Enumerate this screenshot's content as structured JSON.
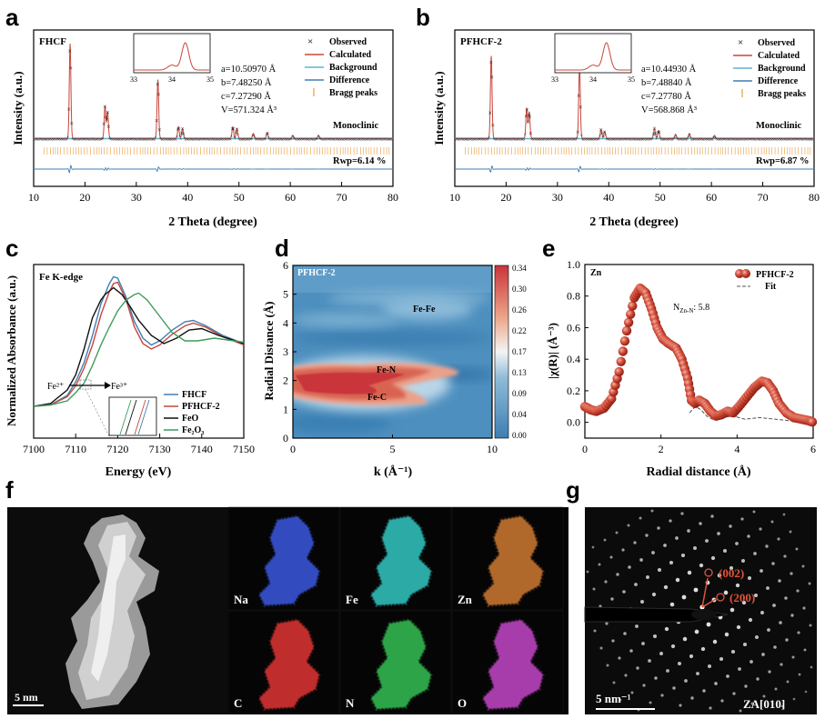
{
  "panel_letters": {
    "a": "a",
    "b": "b",
    "c": "c",
    "d": "d",
    "e": "e",
    "f": "f",
    "g": "g"
  },
  "chart_data": [
    {
      "panel": "a",
      "type": "line",
      "tag": "FHCF",
      "xlabel": "2 Theta (degree)",
      "ylabel": "Intensity (a.u.)",
      "xlim": [
        10,
        80
      ],
      "xticks": [
        "10",
        "20",
        "30",
        "40",
        "50",
        "60",
        "70",
        "80"
      ],
      "legend": [
        "Observed",
        "Calculated",
        "Background",
        "Difference",
        "Bragg peaks"
      ],
      "lattice": [
        "a=10.50970 Å",
        "b=7.48250 Å",
        "c=7.27290 Å",
        "V=571.324 Å³"
      ],
      "phase": "Monoclinic",
      "rwp": "Rwp=6.14 %",
      "inset_xticks": [
        "33",
        "34",
        "35"
      ],
      "peaks": [
        [
          17.1,
          1.0
        ],
        [
          23.9,
          0.34
        ],
        [
          24.4,
          0.28
        ],
        [
          34.2,
          0.62
        ],
        [
          38.2,
          0.12
        ],
        [
          39.0,
          0.1
        ],
        [
          48.8,
          0.12
        ],
        [
          49.6,
          0.1
        ],
        [
          52.8,
          0.05
        ],
        [
          55.5,
          0.06
        ],
        [
          60.5,
          0.03
        ],
        [
          65.5,
          0.03
        ]
      ]
    },
    {
      "panel": "b",
      "type": "line",
      "tag": "PFHCF-2",
      "xlabel": "2 Theta (degree)",
      "ylabel": "Intensity (a.u.)",
      "xlim": [
        10,
        80
      ],
      "xticks": [
        "10",
        "20",
        "30",
        "40",
        "50",
        "60",
        "70",
        "80"
      ],
      "legend": [
        "Observed",
        "Calculated",
        "Background",
        "Difference",
        "Bragg peaks"
      ],
      "lattice": [
        "a=10.44930 Å",
        "b=7.48840 Å",
        "c=7.27780 Å",
        "V=568.868 Å³"
      ],
      "phase": "Monoclinic",
      "rwp": "Rwp=6.87 %",
      "inset_xticks": [
        "33",
        "34",
        "35"
      ],
      "peaks": [
        [
          17.1,
          0.87
        ],
        [
          24.0,
          0.32
        ],
        [
          24.5,
          0.28
        ],
        [
          34.3,
          0.77
        ],
        [
          38.5,
          0.09
        ],
        [
          39.2,
          0.07
        ],
        [
          48.9,
          0.1
        ],
        [
          49.7,
          0.08
        ],
        [
          53.0,
          0.04
        ],
        [
          55.7,
          0.05
        ],
        [
          60.6,
          0.03
        ]
      ]
    },
    {
      "panel": "c",
      "type": "line",
      "tag": "Fe K-edge",
      "xlabel": "Energy (eV)",
      "ylabel": "Normalized Absorbance (a.u.)",
      "xlim": [
        7100,
        7150
      ],
      "xticks": [
        "7100",
        "7110",
        "7120",
        "7130",
        "7140",
        "7150"
      ],
      "annotation": {
        "left": "Fe²⁺",
        "right": "Fe³⁺"
      },
      "series": [
        {
          "name": "FHCF",
          "color": "#3f7fb4",
          "points": [
            [
              7100,
              0.1
            ],
            [
              7104,
              0.11
            ],
            [
              7108,
              0.18
            ],
            [
              7110,
              0.28
            ],
            [
              7112,
              0.42
            ],
            [
              7114,
              0.62
            ],
            [
              7116,
              0.85
            ],
            [
              7118,
              1.0
            ],
            [
              7119,
              1.05
            ],
            [
              7120,
              1.04
            ],
            [
              7122,
              0.9
            ],
            [
              7124,
              0.72
            ],
            [
              7126,
              0.6
            ],
            [
              7128,
              0.55
            ],
            [
              7130,
              0.58
            ],
            [
              7133,
              0.66
            ],
            [
              7136,
              0.72
            ],
            [
              7138,
              0.73
            ],
            [
              7141,
              0.69
            ],
            [
              7145,
              0.62
            ],
            [
              7150,
              0.56
            ]
          ]
        },
        {
          "name": "PFHCF-2",
          "color": "#c8463a",
          "points": [
            [
              7100,
              0.1
            ],
            [
              7104,
              0.11
            ],
            [
              7108,
              0.17
            ],
            [
              7110,
              0.25
            ],
            [
              7112,
              0.38
            ],
            [
              7114,
              0.55
            ],
            [
              7116,
              0.77
            ],
            [
              7118,
              0.94
            ],
            [
              7119,
              1.0
            ],
            [
              7120,
              1.01
            ],
            [
              7122,
              0.88
            ],
            [
              7124,
              0.68
            ],
            [
              7126,
              0.56
            ],
            [
              7128,
              0.52
            ],
            [
              7130,
              0.55
            ],
            [
              7133,
              0.63
            ],
            [
              7136,
              0.69
            ],
            [
              7138,
              0.71
            ],
            [
              7141,
              0.68
            ],
            [
              7145,
              0.61
            ],
            [
              7150,
              0.55
            ]
          ]
        },
        {
          "name": "FeO",
          "color": "#111111",
          "points": [
            [
              7100,
              0.1
            ],
            [
              7104,
              0.12
            ],
            [
              7108,
              0.22
            ],
            [
              7110,
              0.33
            ],
            [
              7112,
              0.52
            ],
            [
              7114,
              0.75
            ],
            [
              7116,
              0.88
            ],
            [
              7117,
              0.92
            ],
            [
              7119,
              0.97
            ],
            [
              7121,
              0.92
            ],
            [
              7123,
              0.83
            ],
            [
              7125,
              0.73
            ],
            [
              7128,
              0.62
            ],
            [
              7131,
              0.56
            ],
            [
              7134,
              0.6
            ],
            [
              7137,
              0.66
            ],
            [
              7140,
              0.67
            ],
            [
              7144,
              0.62
            ],
            [
              7150,
              0.56
            ]
          ]
        },
        {
          "name": "Fe₂O₃",
          "color": "#3e9b5a",
          "points": [
            [
              7100,
              0.1
            ],
            [
              7104,
              0.11
            ],
            [
              7108,
              0.14
            ],
            [
              7110,
              0.2
            ],
            [
              7112,
              0.27
            ],
            [
              7114,
              0.4
            ],
            [
              7116,
              0.55
            ],
            [
              7118,
              0.68
            ],
            [
              7120,
              0.8
            ],
            [
              7122,
              0.88
            ],
            [
              7124,
              0.92
            ],
            [
              7125,
              0.93
            ],
            [
              7127,
              0.88
            ],
            [
              7130,
              0.76
            ],
            [
              7133,
              0.64
            ],
            [
              7136,
              0.58
            ],
            [
              7139,
              0.58
            ],
            [
              7143,
              0.6
            ],
            [
              7150,
              0.57
            ]
          ]
        }
      ]
    },
    {
      "panel": "d",
      "type": "heatmap",
      "tag": "PFHCF-2",
      "xlabel": "k (Å⁻¹)",
      "ylabel": "Radial Distance (Å)",
      "xlim": [
        0,
        10
      ],
      "ylim": [
        0,
        6
      ],
      "xticks": [
        "0",
        "5",
        "10"
      ],
      "yticks": [
        "0",
        "1",
        "2",
        "3",
        "4",
        "5",
        "6"
      ],
      "colorbar_ticks": [
        "0.00",
        "0.04",
        "0.09",
        "0.13",
        "0.17",
        "0.22",
        "0.26",
        "0.30",
        "0.34"
      ],
      "labels": [
        "Fe-Fe",
        "Fe-N",
        "Fe-C"
      ]
    },
    {
      "panel": "e",
      "type": "scatter",
      "tag": "Zn",
      "xlabel": "Radial distance (Å)",
      "ylabel": "|χ(R)| (Å⁻³)",
      "xlim": [
        0,
        6
      ],
      "ylim": [
        -0.1,
        1.0
      ],
      "xticks": [
        "0",
        "2",
        "4",
        "6"
      ],
      "yticks": [
        "0.0",
        "0.2",
        "0.4",
        "0.6",
        "0.8",
        "1.0"
      ],
      "coord": "N",
      "coord_sub": "Zn-N",
      "coord_value": ": 5.8",
      "legend": [
        "PFHCF-2",
        "Fit"
      ],
      "series": [
        {
          "name": "PFHCF-2",
          "color": "#c8463a",
          "points": [
            [
              0,
              0.1
            ],
            [
              0.15,
              0.08
            ],
            [
              0.3,
              0.07
            ],
            [
              0.5,
              0.09
            ],
            [
              0.7,
              0.15
            ],
            [
              0.9,
              0.32
            ],
            [
              1.1,
              0.58
            ],
            [
              1.3,
              0.79
            ],
            [
              1.45,
              0.85
            ],
            [
              1.6,
              0.82
            ],
            [
              1.75,
              0.72
            ],
            [
              1.9,
              0.6
            ],
            [
              2.05,
              0.53
            ],
            [
              2.2,
              0.5
            ],
            [
              2.4,
              0.47
            ],
            [
              2.55,
              0.4
            ],
            [
              2.7,
              0.28
            ],
            [
              2.8,
              0.14
            ],
            [
              2.9,
              0.12
            ],
            [
              3.0,
              0.14
            ],
            [
              3.15,
              0.12
            ],
            [
              3.3,
              0.07
            ],
            [
              3.45,
              0.04
            ],
            [
              3.6,
              0.05
            ],
            [
              3.75,
              0.07
            ],
            [
              3.9,
              0.06
            ],
            [
              4.05,
              0.1
            ],
            [
              4.25,
              0.16
            ],
            [
              4.45,
              0.22
            ],
            [
              4.65,
              0.26
            ],
            [
              4.8,
              0.25
            ],
            [
              4.95,
              0.2
            ],
            [
              5.1,
              0.12
            ],
            [
              5.3,
              0.06
            ],
            [
              5.5,
              0.03
            ],
            [
              5.7,
              0.02
            ],
            [
              5.9,
              0.01
            ],
            [
              6.0,
              0.0
            ]
          ]
        },
        {
          "name": "Fit",
          "color": "#555555",
          "points": [
            [
              2.75,
              0.06
            ],
            [
              2.9,
              0.1
            ],
            [
              3.05,
              0.08
            ],
            [
              3.2,
              0.04
            ],
            [
              3.35,
              0.02
            ],
            [
              3.6,
              0.03
            ],
            [
              3.9,
              0.04
            ],
            [
              4.2,
              0.02
            ],
            [
              4.6,
              0.03
            ],
            [
              5.0,
              0.02
            ],
            [
              5.4,
              0.01
            ],
            [
              6.0,
              0.0
            ]
          ]
        }
      ]
    }
  ],
  "panel_f": {
    "scale": "5 nm",
    "maps": [
      {
        "label": "Na",
        "color": "#3a58e0"
      },
      {
        "label": "Fe",
        "color": "#33c7c3"
      },
      {
        "label": "Zn",
        "color": "#d07a32"
      },
      {
        "label": "C",
        "color": "#e03434"
      },
      {
        "label": "N",
        "color": "#35c052"
      },
      {
        "label": "O",
        "color": "#c446c8"
      }
    ]
  },
  "panel_g": {
    "spot1": "(002)",
    "spot2": "(200)",
    "scale": "5 nm⁻¹",
    "zone": "ZA[010]"
  }
}
